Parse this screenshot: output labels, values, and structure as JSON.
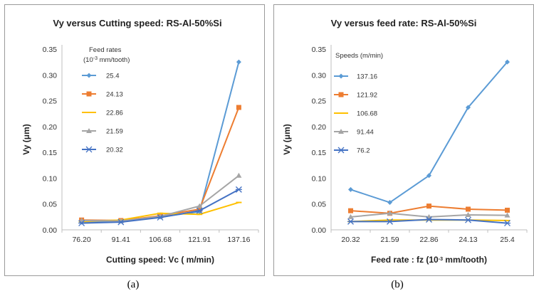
{
  "captions": [
    "(a)",
    "(b)"
  ],
  "chart_data": [
    {
      "type": "line",
      "title": "Vy versus Cutting speed: RS-Al-50%Si",
      "ylabel": "Vy (μm)",
      "xlabel": "Cutting speed: Vc ( m/min)",
      "categories": [
        "76.20",
        "91.41",
        "106.68",
        "121.91",
        "137.16"
      ],
      "ylim": [
        0,
        0.35
      ],
      "yticks": [
        "0.00",
        "0.05",
        "0.10",
        "0.15",
        "0.20",
        "0.25",
        "0.30",
        "0.35"
      ],
      "legend_title": [
        "Feed rates",
        "(10",
        "-3",
        " mm/tooth)"
      ],
      "series": [
        {
          "name": "25.4",
          "color": "#5B9BD5",
          "marker": "diamond",
          "values": [
            0.015,
            0.017,
            0.025,
            0.035,
            0.325
          ]
        },
        {
          "name": "24.13",
          "color": "#ED7D31",
          "marker": "square",
          "values": [
            0.019,
            0.018,
            0.027,
            0.04,
            0.237
          ]
        },
        {
          "name": "22.86",
          "color": "#FFC000",
          "marker": "dash",
          "values": [
            0.016,
            0.019,
            0.032,
            0.03,
            0.053
          ]
        },
        {
          "name": "21.59",
          "color": "#A5A5A5",
          "marker": "triangle",
          "values": [
            0.018,
            0.017,
            0.026,
            0.046,
            0.105
          ]
        },
        {
          "name": "20.32",
          "color": "#4472C4",
          "marker": "star",
          "values": [
            0.013,
            0.015,
            0.024,
            0.037,
            0.078
          ]
        }
      ]
    },
    {
      "type": "line",
      "title": "Vy versus feed rate: RS-Al-50%Si",
      "ylabel": "Vy (μm)",
      "xlabel": [
        "Feed rate : fz (10",
        "-3",
        "  mm/tooth)"
      ],
      "categories": [
        "20.32",
        "21.59",
        "22.86",
        "24.13",
        "25.4"
      ],
      "ylim": [
        0,
        0.35
      ],
      "yticks": [
        "0.00",
        "0.05",
        "0.10",
        "0.15",
        "0.20",
        "0.25",
        "0.30",
        "0.35"
      ],
      "legend_title": [
        "Speeds (m/min)"
      ],
      "series": [
        {
          "name": "137.16",
          "color": "#5B9BD5",
          "marker": "diamond",
          "values": [
            0.078,
            0.053,
            0.105,
            0.237,
            0.325
          ]
        },
        {
          "name": "121.92",
          "color": "#ED7D31",
          "marker": "square",
          "values": [
            0.037,
            0.032,
            0.046,
            0.04,
            0.038
          ]
        },
        {
          "name": "106.68",
          "color": "#FFC000",
          "marker": "dash",
          "values": [
            0.016,
            0.019,
            0.019,
            0.019,
            0.018
          ]
        },
        {
          "name": "91.44",
          "color": "#A5A5A5",
          "marker": "triangle",
          "values": [
            0.025,
            0.032,
            0.025,
            0.029,
            0.028
          ]
        },
        {
          "name": "76.2",
          "color": "#4472C4",
          "marker": "star",
          "values": [
            0.016,
            0.016,
            0.02,
            0.019,
            0.013
          ]
        }
      ]
    }
  ]
}
